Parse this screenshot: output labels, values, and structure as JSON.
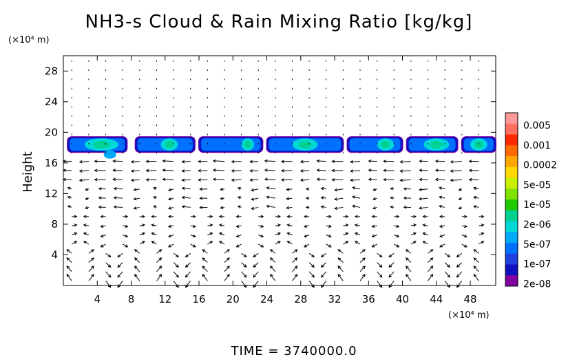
{
  "chart_data": {
    "type": "heatmap",
    "title": "NH3-s Cloud & Rain Mixing Ratio [kg/kg]",
    "ylabel": "Height",
    "x_units": "(×10⁴ m)",
    "y_units": "(×10⁴ m)",
    "xlim": [
      0,
      51
    ],
    "ylim": [
      0,
      30
    ],
    "x_ticks": [
      4,
      8,
      12,
      16,
      20,
      24,
      28,
      32,
      36,
      40,
      44,
      48
    ],
    "y_ticks": [
      4,
      8,
      12,
      16,
      20,
      24,
      28
    ],
    "colorbar": {
      "labels": [
        "0.005",
        "0.001",
        "0.0002",
        "5e-05",
        "1e-05",
        "2e-06",
        "5e-07",
        "1e-07",
        "2e-08"
      ],
      "colors": [
        "#ff9999",
        "#ff7060",
        "#ff2a00",
        "#ff6a00",
        "#ffa500",
        "#ffd800",
        "#c8ef00",
        "#80e000",
        "#20c800",
        "#00d090",
        "#00d8d8",
        "#00a8f8",
        "#0070ff",
        "#2040e0",
        "#1010c0",
        "#8000a0"
      ]
    },
    "cloud_layer": {
      "y_base": 17.5,
      "y_top": 19.3,
      "segments": [
        {
          "x0": 0.5,
          "x1": 7.5,
          "core": [
            2.5,
            6.5
          ]
        },
        {
          "x0": 8.5,
          "x1": 15.5,
          "core": [
            11.5,
            13.5
          ]
        },
        {
          "x0": 16.0,
          "x1": 23.5,
          "core": [
            21.0,
            22.5
          ]
        },
        {
          "x0": 24.0,
          "x1": 33.0,
          "core": [
            27.0,
            30.0
          ]
        },
        {
          "x0": 33.5,
          "x1": 40.0,
          "core": [
            37.0,
            39.0
          ]
        },
        {
          "x0": 40.5,
          "x1": 46.5,
          "core": [
            42.5,
            45.5
          ]
        },
        {
          "x0": 47.0,
          "x1": 51.0,
          "core": [
            48.0,
            50.0
          ]
        }
      ]
    },
    "wind_vectors": {
      "dx": 2,
      "dy": 1.2,
      "layers": [
        {
          "y_range": [
            13,
            17.2
          ],
          "u": -1.0,
          "w": 0.05
        },
        {
          "y_range": [
            10,
            13
          ],
          "u": -0.6,
          "w": 0.1
        },
        {
          "y_range": [
            0.5,
            9
          ],
          "circulation_period": 8.0,
          "amplitude": 1.0
        },
        {
          "y_range": [
            17.2,
            30
          ],
          "u": 0.3,
          "w": 0.0
        }
      ]
    }
  },
  "footer": {
    "time_label": "TIME = 3740000.0"
  }
}
